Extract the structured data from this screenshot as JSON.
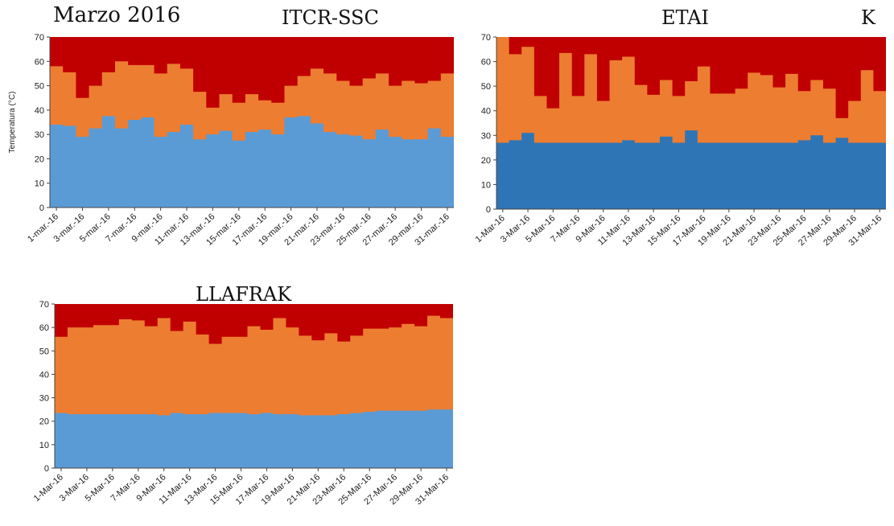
{
  "page": {
    "title": "Marzo 2016",
    "colors": {
      "band_low": "#5b9bd5",
      "band_low_dark": "#2e75b6",
      "band_mid": "#ed7d31",
      "band_high": "#c00000"
    }
  },
  "chart_data": [
    {
      "type": "area",
      "title": "ITCR-SSC",
      "ylabel": "Temperatura (°C)",
      "ylim": [
        0,
        70
      ],
      "yticks": [
        0,
        10,
        20,
        30,
        40,
        50,
        60,
        70
      ],
      "x": [
        "1-mar.-16",
        "2-mar.-16",
        "3-mar.-16",
        "4-mar.-16",
        "5-mar.-16",
        "6-mar.-16",
        "7-mar.-16",
        "8-mar.-16",
        "9-mar.-16",
        "10-mar.-16",
        "11-mar.-16",
        "12-mar.-16",
        "13-mar.-16",
        "14-mar.-16",
        "15-mar.-16",
        "16-mar.-16",
        "17-mar.-16",
        "18-mar.-16",
        "19-mar.-16",
        "20-mar.-16",
        "21-mar.-16",
        "22-mar.-16",
        "23-mar.-16",
        "24-mar.-16",
        "25-mar.-16",
        "26-mar.-16",
        "27-mar.-16",
        "28-mar.-16",
        "29-mar.-16",
        "30-mar.-16",
        "31-mar.-16"
      ],
      "xtick_labels": [
        "1-mar.-16",
        "3-mar.-16",
        "5-mar.-16",
        "7-mar.-16",
        "9-mar.-16",
        "11-mar.-16",
        "13-mar.-16",
        "15-mar.-16",
        "17-mar.-16",
        "19-mar.-16",
        "21-mar.-16",
        "23-mar.-16",
        "25-mar.-16",
        "27-mar.-16",
        "29-mar.-16",
        "31-mar.-16"
      ],
      "low": [
        34,
        33.5,
        29,
        32.5,
        37.5,
        32.5,
        36,
        37,
        29,
        31,
        34,
        28,
        30,
        31.5,
        27.5,
        31,
        32,
        30,
        37,
        37.5,
        34.5,
        31,
        30,
        29.5,
        28,
        32,
        29,
        28,
        28,
        32.5,
        29
      ],
      "high": [
        58,
        55.5,
        45,
        50,
        55.5,
        60,
        58.5,
        58.5,
        55,
        59,
        57,
        47.5,
        41,
        46.5,
        43,
        46.5,
        44,
        43,
        50,
        54,
        57,
        55,
        52,
        50,
        53,
        55,
        50,
        52,
        51,
        52,
        55
      ],
      "max": 70
    },
    {
      "type": "area",
      "title": "ETAI",
      "title_suffix": "K",
      "ylim": [
        0,
        70
      ],
      "yticks": [
        0,
        10,
        20,
        30,
        40,
        50,
        60,
        70
      ],
      "x": [
        "1-Mar-16",
        "2-Mar-16",
        "3-Mar-16",
        "4-Mar-16",
        "5-Mar-16",
        "6-Mar-16",
        "7-Mar-16",
        "8-Mar-16",
        "9-Mar-16",
        "10-Mar-16",
        "11-Mar-16",
        "12-Mar-16",
        "13-Mar-16",
        "14-Mar-16",
        "15-Mar-16",
        "16-Mar-16",
        "17-Mar-16",
        "18-Mar-16",
        "19-Mar-16",
        "20-Mar-16",
        "21-Mar-16",
        "22-Mar-16",
        "23-Mar-16",
        "24-Mar-16",
        "25-Mar-16",
        "26-Mar-16",
        "27-Mar-16",
        "28-Mar-16",
        "29-Mar-16",
        "30-Mar-16",
        "31-Mar-16"
      ],
      "xtick_labels": [
        "1-Mar-16",
        "3-Mar-16",
        "5-Mar-16",
        "7-Mar-16",
        "9-Mar-16",
        "11-Mar-16",
        "13-Mar-16",
        "15-Mar-16",
        "17-Mar-16",
        "19-Mar-16",
        "21-Mar-16",
        "23-Mar-16",
        "25-Mar-16",
        "27-Mar-16",
        "29-Mar-16",
        "31-Mar-16"
      ],
      "low": [
        27,
        28,
        31,
        27,
        27,
        27,
        27,
        27,
        27,
        27,
        28,
        27,
        27,
        29.5,
        27,
        32,
        27,
        27,
        27,
        27,
        27,
        27,
        27,
        27,
        28,
        30,
        27,
        29,
        27,
        27,
        27
      ],
      "high": [
        70,
        63,
        66,
        46,
        41,
        63.5,
        46,
        63,
        44,
        60.5,
        62,
        50.5,
        46.5,
        52.5,
        46,
        52,
        58,
        47,
        47,
        49,
        55.5,
        54.5,
        49.5,
        55,
        48,
        52.5,
        49,
        37,
        44,
        56.5,
        48
      ],
      "max": 70
    },
    {
      "type": "area",
      "title": "LLAFRAK",
      "ylim": [
        0,
        70
      ],
      "yticks": [
        0,
        10,
        20,
        30,
        40,
        50,
        60,
        70
      ],
      "x": [
        "1-Mar-16",
        "2-Mar-16",
        "3-Mar-16",
        "4-Mar-16",
        "5-Mar-16",
        "6-Mar-16",
        "7-Mar-16",
        "8-Mar-16",
        "9-Mar-16",
        "10-Mar-16",
        "11-Mar-16",
        "12-Mar-16",
        "13-Mar-16",
        "14-Mar-16",
        "15-Mar-16",
        "16-Mar-16",
        "17-Mar-16",
        "18-Mar-16",
        "19-Mar-16",
        "20-Mar-16",
        "21-Mar-16",
        "22-Mar-16",
        "23-Mar-16",
        "24-Mar-16",
        "25-Mar-16",
        "26-Mar-16",
        "27-Mar-16",
        "28-Mar-16",
        "29-Mar-16",
        "30-Mar-16",
        "31-Mar-16"
      ],
      "xtick_labels": [
        "1-Mar-16",
        "3-Mar-16",
        "5-Mar-16",
        "7-Mar-16",
        "9-Mar-16",
        "11-Mar-16",
        "13-Mar-16",
        "15-Mar-16",
        "17-Mar-16",
        "19-Mar-16",
        "21-Mar-16",
        "23-Mar-16",
        "25-Mar-16",
        "27-Mar-16",
        "29-Mar-16",
        "31-Mar-16"
      ],
      "low": [
        23.5,
        23,
        23,
        23,
        23,
        23,
        23,
        23,
        22.5,
        23.5,
        23,
        23,
        23.5,
        23.5,
        23.5,
        23,
        23.5,
        23,
        23,
        22.5,
        22.5,
        22.5,
        23,
        23.5,
        24,
        24.5,
        24.5,
        24.5,
        24.5,
        25,
        25
      ],
      "high": [
        56,
        60,
        60,
        61,
        61,
        63.5,
        63,
        60.5,
        64,
        58.5,
        62.5,
        57,
        53,
        56,
        56,
        60.5,
        59,
        64,
        60,
        56.5,
        54.5,
        57.5,
        54,
        56.5,
        59.5,
        59.5,
        60,
        61.5,
        60.5,
        65,
        64
      ],
      "max": 70
    }
  ]
}
